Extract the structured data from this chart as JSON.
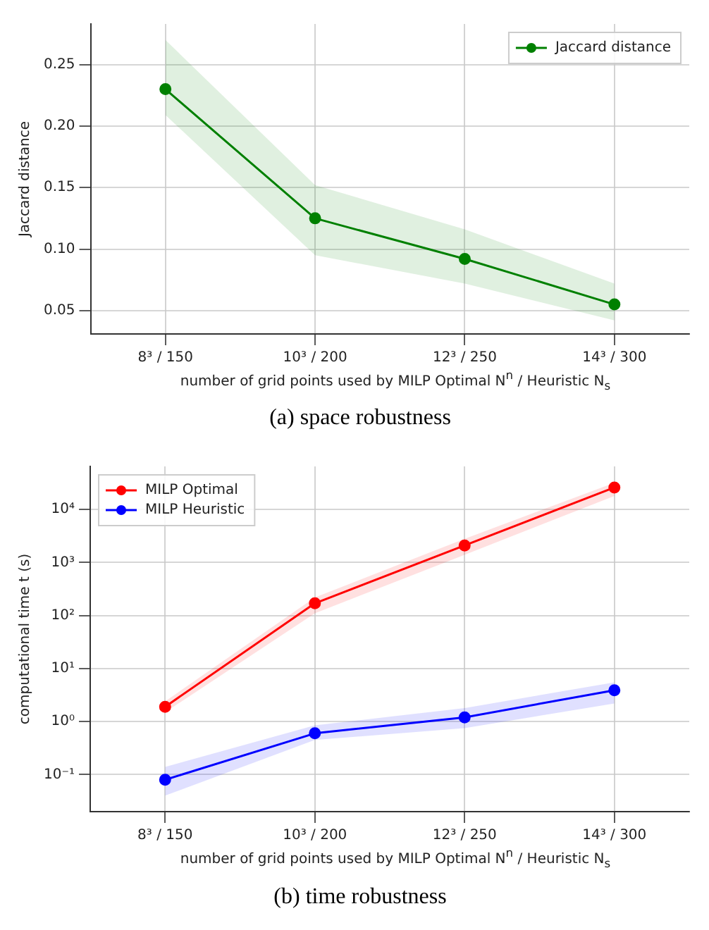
{
  "chart_data": [
    {
      "type": "line",
      "title": "(a) space robustness",
      "xlabel": "number of grid points used by MILP Optimal N$^{n}$ / Heuristic N$_{s}$",
      "ylabel": "Jaccard distance",
      "categories": [
        "8³ / 150",
        "10³ / 200",
        "12³ / 250",
        "14³ / 300"
      ],
      "series": [
        {
          "name": "Jaccard distance",
          "color": "#008000",
          "values": [
            0.23,
            0.125,
            0.092,
            0.055
          ],
          "lower": [
            0.209,
            0.095,
            0.072,
            0.042
          ],
          "upper": [
            0.27,
            0.152,
            0.116,
            0.072
          ]
        }
      ],
      "ylim": [
        0.031,
        0.283
      ],
      "yticks": [
        0.05,
        {
          "value": 0.1,
          "label": "0.10"
        },
        0.15,
        {
          "value": 0.2,
          "label": "0.20"
        },
        0.25
      ],
      "grid": true,
      "legend": "top right",
      "marker": "circle",
      "line_style": "solid"
    },
    {
      "type": "line",
      "title": "(b) time robustness",
      "xlabel": "number of grid points used by MILP Optimal N$^{n}$ / Heuristic N$_{s}$",
      "ylabel": "computational time t (s)",
      "categories": [
        "8³ / 150",
        "10³ / 200",
        "12³ / 250",
        "14³ / 300"
      ],
      "series": [
        {
          "name": "MILP Optimal",
          "color": "#ff0000",
          "values": [
            1.9,
            170,
            2100,
            26000
          ],
          "lower": [
            1.5,
            110,
            1400,
            18000
          ],
          "upper": [
            2.4,
            220,
            2800,
            32000
          ]
        },
        {
          "name": "MILP Heuristic",
          "color": "#0000ff",
          "values": [
            0.08,
            0.6,
            1.2,
            3.9
          ],
          "lower": [
            0.04,
            0.45,
            0.75,
            2.2
          ],
          "upper": [
            0.14,
            0.85,
            1.8,
            5.5
          ]
        }
      ],
      "log": "y",
      "ylim": [
        0.02,
        65000
      ],
      "yticks": [
        {
          "value": 0.1,
          "label": "10⁻¹"
        },
        {
          "value": 1,
          "label": "10⁰"
        },
        {
          "value": 10,
          "label": "10¹"
        },
        {
          "value": 100,
          "label": "10²"
        },
        {
          "value": 1000,
          "label": "10³"
        },
        {
          "value": 10000,
          "label": "10⁴"
        }
      ],
      "grid": true,
      "legend": "top left",
      "marker": "circle",
      "line_style": "solid"
    }
  ]
}
